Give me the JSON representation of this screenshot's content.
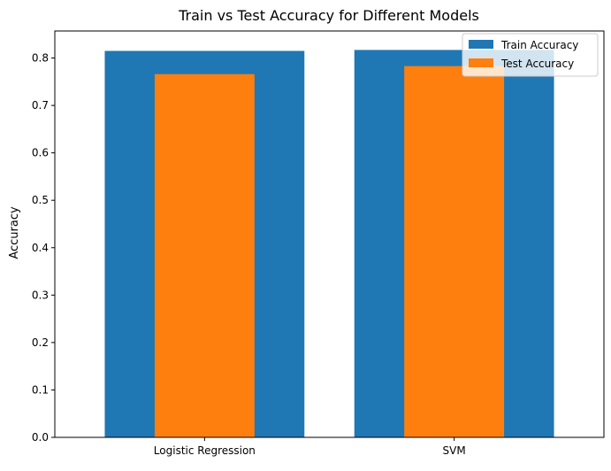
{
  "chart_data": {
    "type": "bar",
    "title": "Train vs Test Accuracy for Different Models",
    "xlabel": "",
    "ylabel": "Accuracy",
    "categories": [
      "Logistic Regression",
      "SVM"
    ],
    "series": [
      {
        "name": "Train Accuracy",
        "values": [
          0.815,
          0.817
        ],
        "color": "#1f77b4"
      },
      {
        "name": "Test Accuracy",
        "values": [
          0.766,
          0.783
        ],
        "color": "#ff7f0e"
      }
    ],
    "ylim": [
      0,
      0.857
    ],
    "yticks": [
      0.0,
      0.1,
      0.2,
      0.3,
      0.4,
      0.5,
      0.6,
      0.7,
      0.8
    ],
    "ytick_labels": [
      "0.0",
      "0.1",
      "0.2",
      "0.3",
      "0.4",
      "0.5",
      "0.6",
      "0.7",
      "0.8"
    ],
    "grid": false,
    "legend_position": "top-right"
  }
}
